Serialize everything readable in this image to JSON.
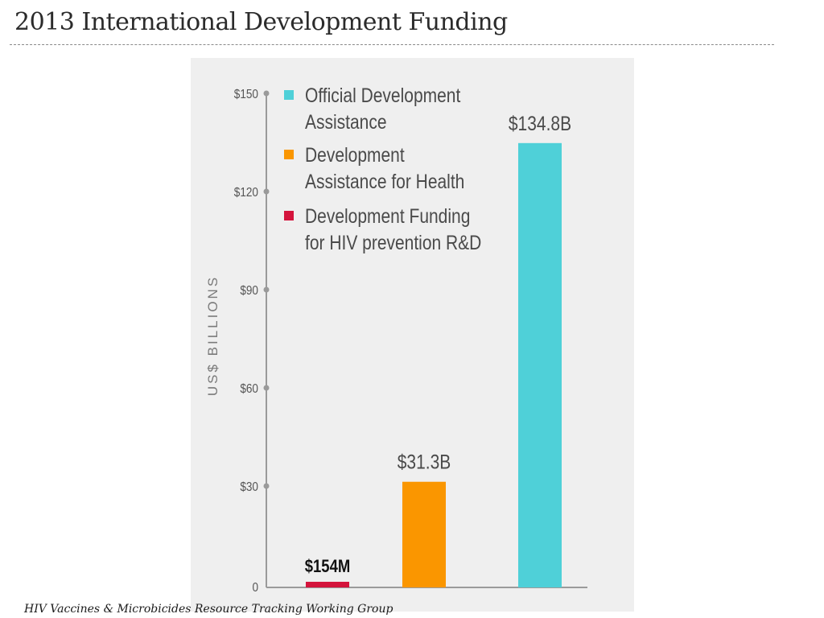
{
  "slide": {
    "title": "2013 International Development Funding",
    "footer": "HIV Vaccines & Microbicides Resource Tracking Working Group"
  },
  "chart_data": {
    "type": "bar",
    "categories": [
      "Development Funding for HIV prevention R&D",
      "Development Assistance for Health",
      "Official Development Assistance"
    ],
    "values": [
      0.154,
      31.3,
      134.8
    ],
    "value_labels": [
      "$154M",
      "$31.3B",
      "$134.8B"
    ],
    "colors": [
      "#d4143c",
      "#fa9600",
      "#4fd0d8"
    ],
    "ylabel": "US$ BILLIONS",
    "ylim": [
      0,
      150
    ],
    "yticks": [
      0,
      30,
      60,
      90,
      120,
      150
    ],
    "ytick_labels": [
      "0",
      "$30",
      "$60",
      "$90",
      "$120",
      "$150"
    ],
    "grid": false,
    "legend": {
      "placement": "top-left",
      "entries": [
        {
          "lines": [
            "Official Development",
            "Assistance"
          ],
          "color": "#4fd0d8"
        },
        {
          "lines": [
            "Development",
            "Assistance for Health"
          ],
          "color": "#fa9600"
        },
        {
          "lines": [
            "Development Funding",
            "for HIV prevention R&D"
          ],
          "color": "#d4143c"
        }
      ]
    }
  }
}
